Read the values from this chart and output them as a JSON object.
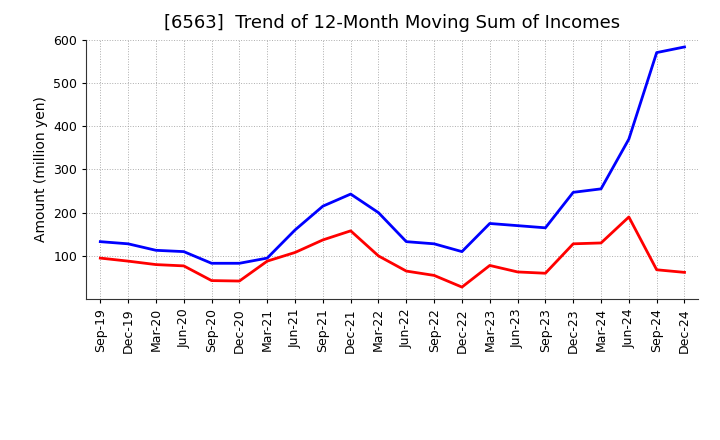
{
  "title": "[6563]  Trend of 12-Month Moving Sum of Incomes",
  "ylabel": "Amount (million yen)",
  "ylim": [
    0,
    600
  ],
  "yticks": [
    100,
    200,
    300,
    400,
    500,
    600
  ],
  "x_labels": [
    "Sep-19",
    "Dec-19",
    "Mar-20",
    "Jun-20",
    "Sep-20",
    "Dec-20",
    "Mar-21",
    "Jun-21",
    "Sep-21",
    "Dec-21",
    "Mar-22",
    "Jun-22",
    "Sep-22",
    "Dec-22",
    "Mar-23",
    "Jun-23",
    "Sep-23",
    "Dec-23",
    "Mar-24",
    "Jun-24",
    "Sep-24",
    "Dec-24"
  ],
  "ordinary_income": [
    133,
    128,
    113,
    110,
    83,
    83,
    95,
    160,
    215,
    243,
    200,
    133,
    128,
    110,
    175,
    170,
    165,
    247,
    255,
    370,
    570,
    583
  ],
  "net_income": [
    95,
    88,
    80,
    77,
    43,
    42,
    88,
    108,
    137,
    158,
    100,
    65,
    55,
    28,
    78,
    63,
    60,
    128,
    130,
    190,
    68,
    62
  ],
  "ordinary_color": "#0000FF",
  "net_color": "#FF0000",
  "bg_color": "#FFFFFF",
  "plot_bg_color": "#FFFFFF",
  "grid_color": "#999999",
  "title_fontsize": 13,
  "label_fontsize": 10,
  "tick_fontsize": 9,
  "legend_fontsize": 10,
  "line_width": 2.0
}
